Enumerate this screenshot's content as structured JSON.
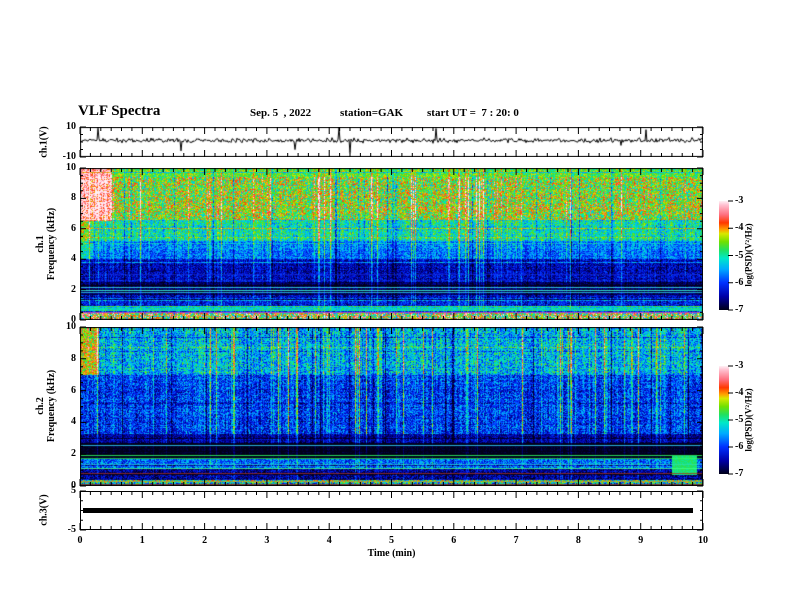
{
  "title": {
    "main": "VLF Spectra",
    "date": "Sep. 5  , 2022",
    "station": "station=GAK",
    "start": "start UT =  7 : 20: 0"
  },
  "panels": {
    "ch1_wave": {
      "label": "ch.1(V)",
      "ymax": "10",
      "ymin": "-10"
    },
    "spec1": {
      "label_line1": "ch.1",
      "label_line2": "Frequency (kHz)",
      "yticks": [
        "0",
        "2",
        "4",
        "6",
        "8",
        "10"
      ]
    },
    "spec2": {
      "label_line1": "ch.2",
      "label_line2": "Frequency (kHz)",
      "yticks": [
        "0",
        "2",
        "4",
        "6",
        "8",
        "10"
      ]
    },
    "ch3": {
      "label": "ch.3(V)",
      "ymax": "5",
      "ymin": "-5"
    }
  },
  "xaxis": {
    "ticks": [
      "0",
      "1",
      "2",
      "3",
      "4",
      "5",
      "6",
      "7",
      "8",
      "9",
      "10"
    ],
    "label": "Time (min)"
  },
  "colorbars": [
    {
      "ticks": [
        "-3",
        "-4",
        "-5",
        "-6",
        "-7"
      ],
      "label": "log(PSD)(V²/Hz)"
    },
    {
      "ticks": [
        "-3",
        "-4",
        "-5",
        "-6",
        "-7"
      ],
      "label": "log(PSD)(V²/Hz)"
    }
  ],
  "chart_data": [
    {
      "type": "line",
      "title": "ch.1 raw waveform",
      "ylabel": "ch.1(V)",
      "ylim": [
        -10,
        10
      ],
      "xlim_min": [
        0,
        10
      ],
      "summary": "Noisy signal centered near 0 V, typical amplitude ±1.5 V, impulsive spikes to about -9 V and +6 V scattered through the record"
    },
    {
      "type": "heatmap",
      "title": "ch.1 spectrogram",
      "ylabel": "ch.1 Frequency (kHz)",
      "ylim": [
        0,
        10
      ],
      "xlim_min": [
        0,
        10
      ],
      "zlabel": "log(PSD)(V²/Hz)",
      "zlim": [
        -7,
        -3
      ],
      "bands": [
        {
          "f": [
            9.4,
            10.0
          ],
          "mean": -4.6,
          "noise": 0.5,
          "streak": 0.5
        },
        {
          "f": [
            6.6,
            9.4
          ],
          "mean": -4.5,
          "noise": 0.8,
          "streak": 0.9
        },
        {
          "f": [
            5.2,
            6.6
          ],
          "mean": -5.1,
          "noise": 0.6,
          "streak": 0.8
        },
        {
          "f": [
            4.0,
            5.2
          ],
          "mean": -5.7,
          "noise": 0.5,
          "streak": 0.7
        },
        {
          "f": [
            2.5,
            4.0
          ],
          "mean": -6.4,
          "noise": 0.45,
          "streak": 0.6
        },
        {
          "f": [
            1.65,
            2.5
          ],
          "mean": -6.8,
          "noise": 0.25,
          "streak": 0.35
        },
        {
          "f": [
            0.95,
            1.65
          ],
          "mean": -6.3,
          "noise": 0.5,
          "streak": 0.5
        },
        {
          "f": [
            0.62,
            0.95
          ],
          "mean": -4.9,
          "noise": 0.35,
          "streak": 0.2
        },
        {
          "f": [
            0.48,
            0.62
          ],
          "mean": -6.0,
          "noise": 0.6,
          "streak": 0.2
        },
        {
          "f": [
            0.0,
            0.48
          ],
          "mean": -4.4,
          "noise": 1.3,
          "streak": 0.3
        }
      ],
      "tone_lines": [
        {
          "f": 2.2,
          "color": "#40ffff",
          "alpha": 0.75
        },
        {
          "f": 2.0,
          "color": "#40ffe0",
          "alpha": 0.85
        },
        {
          "f": 1.82,
          "color": "#30e0ff",
          "alpha": 0.75
        },
        {
          "f": 3.05,
          "color": "#2040ff",
          "alpha": 0.45
        },
        {
          "f": 2.6,
          "color": "#2040ff",
          "alpha": 0.35
        },
        {
          "f": 0.55,
          "color": "#c040c0",
          "alpha": 0.9
        }
      ],
      "features": [
        {
          "t": [
            0,
            0.5
          ],
          "f": [
            6.5,
            10
          ],
          "dv": 1.3,
          "note": "intense red burst top-left"
        },
        {
          "t": [
            0,
            0.2
          ],
          "f": [
            4,
            6.5
          ],
          "dv": 0.6
        }
      ]
    },
    {
      "type": "heatmap",
      "title": "ch.2 spectrogram",
      "ylabel": "ch.2 Frequency (kHz)",
      "ylim": [
        0,
        10
      ],
      "xlim_min": [
        0,
        10
      ],
      "zlabel": "log(PSD)(V²/Hz)",
      "zlim": [
        -7,
        -3
      ],
      "bands": [
        {
          "f": [
            7.0,
            10.0
          ],
          "mean": -5.4,
          "noise": 0.7,
          "streak": 1.0
        },
        {
          "f": [
            3.3,
            7.0
          ],
          "mean": -6.0,
          "noise": 0.6,
          "streak": 0.9
        },
        {
          "f": [
            2.7,
            3.3
          ],
          "mean": -6.5,
          "noise": 0.4,
          "streak": 0.5
        },
        {
          "f": [
            1.7,
            2.7
          ],
          "mean": -7.0,
          "noise": 0.15,
          "streak": 0.2
        },
        {
          "f": [
            1.05,
            1.7
          ],
          "mean": -5.8,
          "noise": 0.6,
          "streak": 0.4
        },
        {
          "f": [
            0.4,
            1.05
          ],
          "mean": -6.6,
          "noise": 0.5,
          "streak": 0.3
        },
        {
          "f": [
            0.0,
            0.4
          ],
          "mean": -4.9,
          "noise": 1.1,
          "streak": 0.2
        }
      ],
      "tone_lines": [
        {
          "f": 2.55,
          "color": "#30d0ff",
          "alpha": 0.85
        },
        {
          "f": 1.95,
          "color": "#30ff60",
          "alpha": 0.85
        },
        {
          "f": 1.78,
          "color": "#30ff60",
          "alpha": 0.7
        },
        {
          "f": 1.4,
          "color": "#30e0c0",
          "alpha": 0.6
        },
        {
          "f": 1.15,
          "color": "#40ff80",
          "alpha": 0.85
        },
        {
          "f": 0.82,
          "color": "#a03020",
          "alpha": 0.8
        },
        {
          "f": 0.3,
          "color": "#c0a020",
          "alpha": 0.8
        },
        {
          "f": 0.15,
          "color": "#803030",
          "alpha": 0.9
        }
      ],
      "features": [
        {
          "t": [
            0,
            0.3
          ],
          "f": [
            7,
            10
          ],
          "dv": 1.2,
          "note": "red/orange burst top-left"
        },
        {
          "t": [
            9.5,
            9.9
          ],
          "f": [
            0.7,
            1.9
          ],
          "set": -4.85,
          "note": "bright green block bottom-right"
        }
      ]
    },
    {
      "type": "line",
      "title": "ch.3 raw waveform",
      "ylabel": "ch.3(V)",
      "ylim": [
        -5,
        5
      ],
      "xlim_min": [
        0,
        10
      ],
      "summary": "Constant flat trace at 0 V for the whole 10 minutes (thick black line)"
    }
  ],
  "colormap": {
    "label": "log(PSD)(V²/Hz)",
    "range": [
      -7,
      -3
    ],
    "stops": [
      {
        "v": -7,
        "c": "#000018"
      },
      {
        "v": -6.5,
        "c": "#0000a8"
      },
      {
        "v": -6,
        "c": "#0030ff"
      },
      {
        "v": -5.5,
        "c": "#00aaff"
      },
      {
        "v": -5.1,
        "c": "#00e8c8"
      },
      {
        "v": -4.8,
        "c": "#20e060"
      },
      {
        "v": -4.5,
        "c": "#70e000"
      },
      {
        "v": -4.2,
        "c": "#d8e800"
      },
      {
        "v": -4.05,
        "c": "#ffa000"
      },
      {
        "v": -3.8,
        "c": "#ff3800"
      },
      {
        "v": -3.5,
        "c": "#ff7080"
      },
      {
        "v": -3.15,
        "c": "#ffc0d0"
      },
      {
        "v": -3,
        "c": "#fff0f5"
      }
    ]
  }
}
